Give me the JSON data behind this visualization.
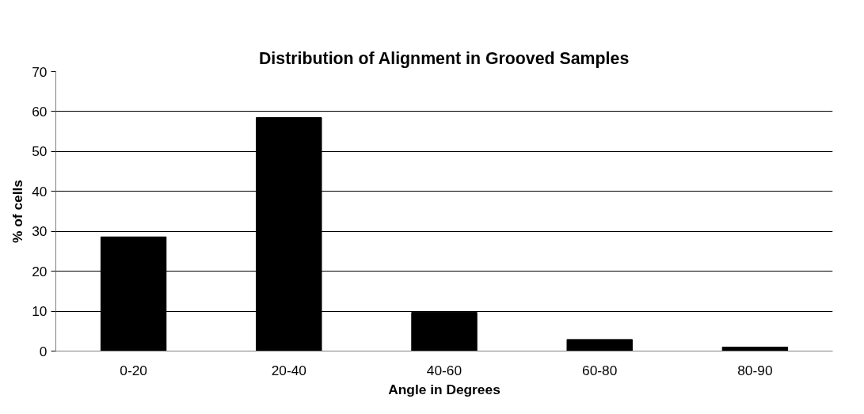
{
  "chart_data": {
    "type": "bar",
    "title": "Distribution of Alignment in Grooved Samples",
    "xlabel": "Angle in Degrees",
    "ylabel": "% of cells",
    "categories": [
      "0-20",
      "20-40",
      "40-60",
      "60-80",
      "80-90"
    ],
    "values": [
      28.6,
      58.5,
      9.7,
      2.9,
      1.0
    ],
    "color": "#000000",
    "ylim": [
      0,
      70
    ],
    "yticks": [
      0,
      10,
      20,
      30,
      40,
      50,
      60,
      70
    ],
    "grid": "y"
  }
}
